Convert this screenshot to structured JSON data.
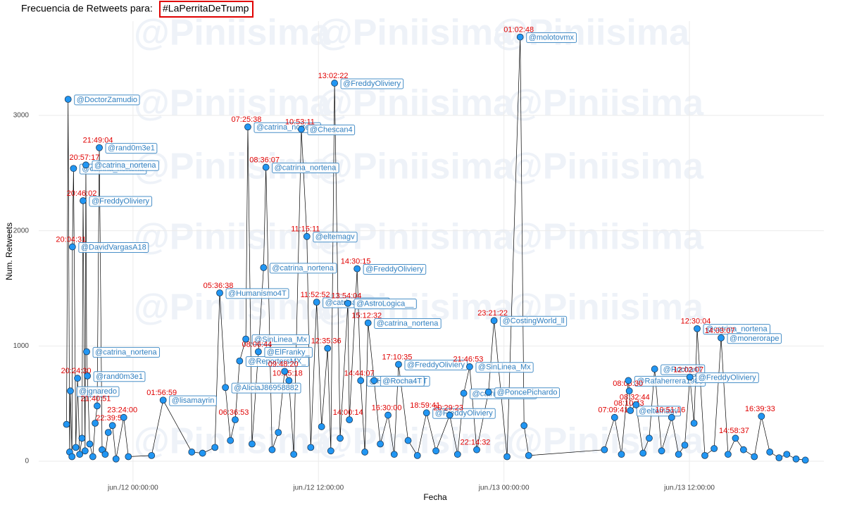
{
  "chart_data": {
    "type": "line",
    "title": "Frecuencia de Retweets para:",
    "hashtag": "#LaPerritaDeTrump",
    "watermark": "@Piniisima",
    "x_label": "Fecha",
    "y_label": "Num. Retweets",
    "xlim": [
      -6.1,
      44.7
    ],
    "ylim": [
      -183,
      3818
    ],
    "xticks": [
      {
        "value": 0,
        "label": "jun./12 00:00:00"
      },
      {
        "value": 12,
        "label": "jun./12 12:00:00"
      },
      {
        "value": 24,
        "label": "jun./13 00:00:00"
      },
      {
        "value": 36,
        "label": "jun./13 12:00:00"
      }
    ],
    "yticks": [
      0,
      1000,
      2000,
      3000
    ],
    "grid": true,
    "series": [
      {
        "color": "#2196f3",
        "x": [
          -4.3,
          -4.2,
          -4.1,
          -4.05,
          -3.95,
          -3.92,
          -3.85,
          -3.7,
          -3.59,
          -3.45,
          -3.3,
          -3.23,
          -3.1,
          -3.05,
          -3.0,
          -2.95,
          -2.8,
          -2.6,
          -2.45,
          -2.32,
          -2.18,
          -2.0,
          -1.8,
          -1.6,
          -1.33,
          -1.1,
          -0.6,
          -0.3,
          1.2,
          1.95,
          3.8,
          4.5,
          5.3,
          5.61,
          5.98,
          6.3,
          6.61,
          6.9,
          7.3,
          7.43,
          7.7,
          8.11,
          8.45,
          8.6,
          9.0,
          9.4,
          9.81,
          10.09,
          10.4,
          10.89,
          11.25,
          11.5,
          11.88,
          12.2,
          12.59,
          12.8,
          13.04,
          13.4,
          13.9,
          14.0,
          14.5,
          14.73,
          15.0,
          15.21,
          15.6,
          16.0,
          16.5,
          16.9,
          17.18,
          17.8,
          18.4,
          18.99,
          19.6,
          20.49,
          21.0,
          21.4,
          21.78,
          22.24,
          23.0,
          23.36,
          24.2,
          25.05,
          25.3,
          25.6,
          30.5,
          31.16,
          31.6,
          32.05,
          32.11,
          32.18,
          32.55,
          33.0,
          33.4,
          33.75,
          34.2,
          34.85,
          35.3,
          35.7,
          36.03,
          36.3,
          36.5,
          37.0,
          37.6,
          38.05,
          38.5,
          38.98,
          39.5,
          40.2,
          40.66,
          41.2,
          41.8,
          42.3,
          42.9,
          43.5
        ],
        "values": [
          320,
          3140,
          80,
          610,
          40,
          1860,
          2540,
          120,
          720,
          60,
          200,
          2260,
          90,
          2570,
          950,
          740,
          150,
          40,
          330,
          480,
          2720,
          100,
          60,
          250,
          310,
          20,
          380,
          40,
          50,
          530,
          80,
          70,
          120,
          1460,
          640,
          180,
          360,
          870,
          1060,
          2900,
          150,
          950,
          1680,
          2550,
          100,
          250,
          780,
          700,
          60,
          2880,
          1950,
          120,
          1380,
          300,
          980,
          90,
          3280,
          200,
          1370,
          360,
          1670,
          700,
          80,
          1200,
          700,
          150,
          400,
          60,
          840,
          180,
          50,
          420,
          90,
          400,
          60,
          590,
          820,
          100,
          600,
          1220,
          40,
          3680,
          310,
          50,
          100,
          380,
          60,
          700,
          610,
          440,
          490,
          70,
          200,
          800,
          90,
          380,
          60,
          140,
          730,
          330,
          1150,
          50,
          110,
          1070,
          60,
          200,
          100,
          40,
          390,
          80,
          30,
          60,
          20,
          10
        ],
        "time_labels": [
          null,
          null,
          null,
          null,
          null,
          "20:04:31",
          null,
          null,
          "20:24:30",
          null,
          null,
          "20:46:02",
          null,
          "20:57:17",
          null,
          null,
          null,
          null,
          null,
          "21:40:51",
          "21:49:04",
          null,
          null,
          null,
          "22:39:58",
          null,
          "23:24:00",
          null,
          null,
          "01:56:59",
          null,
          null,
          null,
          "05:36:38",
          null,
          null,
          "06:36:53",
          null,
          null,
          "07:25:38",
          null,
          "08:06:44",
          null,
          "08:36:07",
          null,
          null,
          "09:48:20",
          "10:05:18",
          null,
          "10:53:11",
          "11:15:11",
          null,
          "11:52:52",
          null,
          "12:35:36",
          null,
          "13:02:22",
          null,
          "13:54:04",
          "14:00:14",
          "14:30:15",
          "14:44:07",
          null,
          "15:12:32",
          null,
          null,
          "16:30:00",
          null,
          "17:10:35",
          null,
          null,
          "18:59:41",
          null,
          "20:29:23",
          null,
          null,
          "21:46:53",
          "22:14:32",
          null,
          "23:21:22",
          null,
          "01:02:48",
          null,
          null,
          null,
          "07:09:41",
          null,
          null,
          "08:06:30",
          "08:10:43",
          "08:32:44",
          null,
          null,
          null,
          null,
          "10:51:16",
          null,
          null,
          "12:02:07",
          null,
          "12:30:04",
          null,
          null,
          "14:03:07",
          null,
          "14:58:37",
          null,
          null,
          "16:39:33",
          null,
          null,
          null,
          null,
          null
        ],
        "user_labels": [
          null,
          "@DoctorZamudio",
          null,
          "@jgnaredo",
          null,
          "@DavidVargasA18",
          "@catrina_nortena",
          null,
          null,
          null,
          null,
          "@FreddyOliviery",
          null,
          "@catrina_nortena",
          "@catrina_nortena",
          "@rand0m3e1",
          null,
          null,
          null,
          null,
          "@rand0m3e1",
          null,
          null,
          null,
          null,
          null,
          null,
          null,
          null,
          "@lisamayrin",
          null,
          null,
          null,
          "@Humanismo4T",
          "@AliciaJ86958882",
          null,
          null,
          "@ReportersMX_",
          "@SinLinea_Mx",
          "@catrina_nortena",
          null,
          "@ElFranky_",
          "@catrina_nortena",
          "@catrina_nortena",
          null,
          null,
          null,
          null,
          null,
          "@Chescan4",
          "@eltemagv",
          null,
          "@catrina_nortena",
          null,
          null,
          null,
          "@FreddyOliviery",
          null,
          "@AstroLogica__",
          null,
          "@FreddyOliviery",
          "@Humanismo4T",
          null,
          "@catrina_nortena",
          "@Rocha4T",
          null,
          null,
          null,
          "@FreddyOliviery",
          null,
          null,
          "@FreddyOliviery",
          null,
          null,
          null,
          "@catrina_nortena",
          "@SinLinea_Mx",
          null,
          "@PoncePichardo",
          "@CostingWorld_ll",
          null,
          "@molotovmx",
          null,
          null,
          null,
          null,
          null,
          "@Rafaherrera1983",
          null,
          "@eltemagv",
          null,
          null,
          null,
          "@Rocha4T",
          null,
          null,
          null,
          null,
          "@FreddyOliviery",
          null,
          "@catrina_nortena",
          null,
          null,
          "@monerorape",
          null,
          null,
          null,
          null,
          null,
          null,
          null,
          null,
          null,
          null
        ]
      }
    ]
  }
}
